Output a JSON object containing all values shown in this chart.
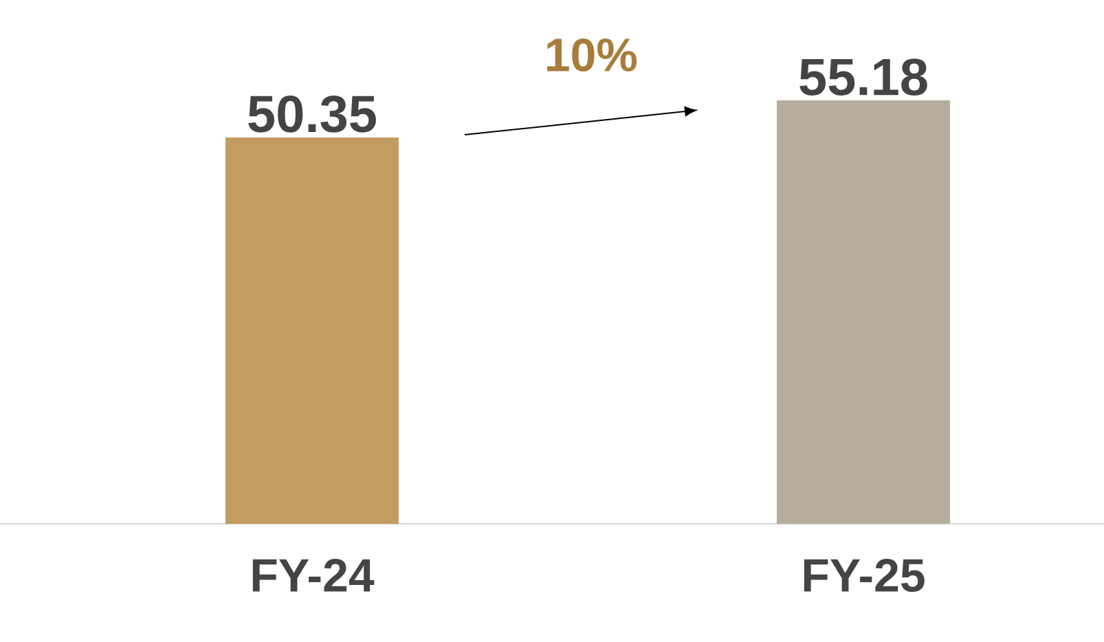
{
  "chart_data": {
    "type": "bar",
    "categories": [
      "FY-24",
      "FY-25"
    ],
    "values": [
      50.35,
      55.18
    ],
    "colors": [
      "#c49c62",
      "#b6aca0"
    ],
    "data_labels": true,
    "annotations": [
      "10%"
    ]
  }
}
